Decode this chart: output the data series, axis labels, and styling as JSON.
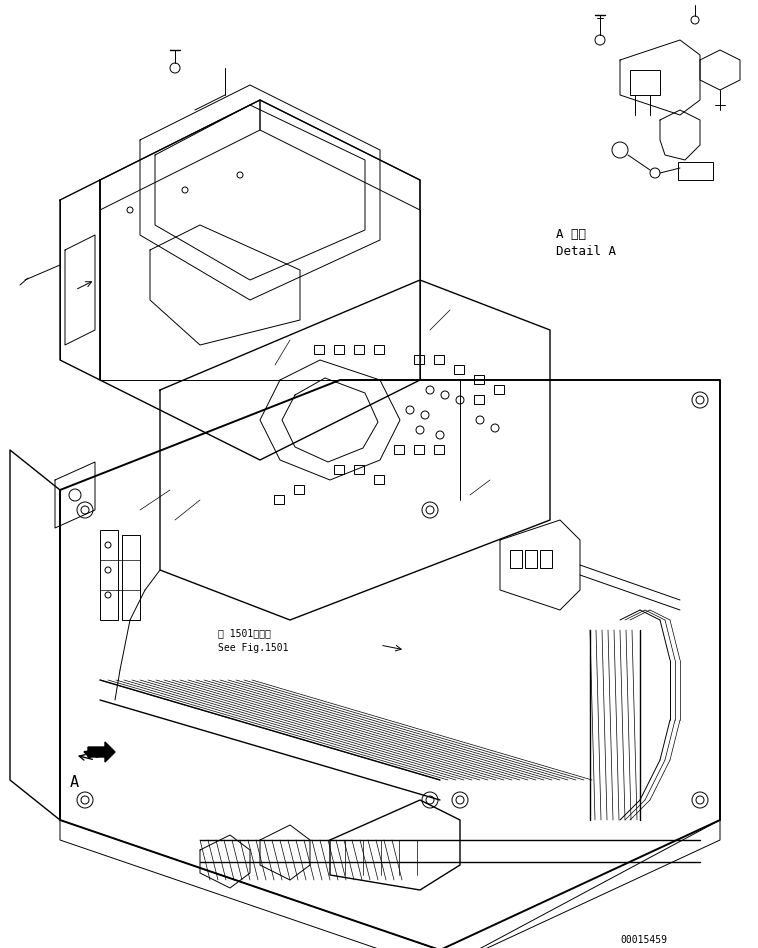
{
  "background_color": "#ffffff",
  "figure_width": 7.58,
  "figure_height": 9.48,
  "dpi": 100,
  "part_number": "00015459",
  "detail_label_ja": "A 詳細",
  "detail_label_en": "Detail A",
  "see_fig_ja": "第 1501図参照",
  "see_fig_en": "See Fig.1501",
  "label_A": "A",
  "line_color": "#000000",
  "font_family": "monospace",
  "font_size_small": 7,
  "font_size_medium": 9,
  "font_size_large": 11
}
